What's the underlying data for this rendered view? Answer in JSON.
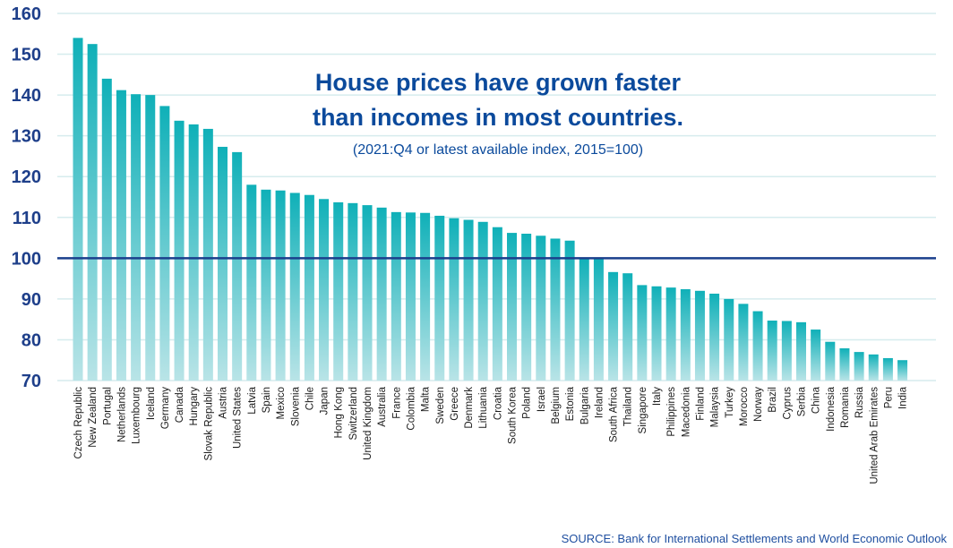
{
  "chart_data": {
    "type": "bar",
    "title_line1": "House prices have grown faster",
    "title_line2": "than incomes in most countries.",
    "subtitle": "(2021:Q4 or latest available index, 2015=100)",
    "source": "SOURCE: Bank for International Settlements and World Economic Outlook",
    "ylim": [
      70,
      160
    ],
    "yticks": [
      70,
      80,
      90,
      100,
      110,
      120,
      130,
      140,
      150,
      160
    ],
    "reference_line": 100,
    "grid": true,
    "categories": [
      "Czech Republic",
      "New Zealand",
      "Portugal",
      "Netherlands",
      "Luxembourg",
      "Iceland",
      "Germany",
      "Canada",
      "Hungary",
      "Slovak Republic",
      "Austria",
      "United States",
      "Latvia",
      "Spain",
      "Mexico",
      "Slovenia",
      "Chile",
      "Japan",
      "Hong Kong",
      "Switzerland",
      "United Kingdom",
      "Australia",
      "France",
      "Colombia",
      "Malta",
      "Sweden",
      "Greece",
      "Denmark",
      "Lithuania",
      "Croatia",
      "South Korea",
      "Poland",
      "Israel",
      "Belgium",
      "Estonia",
      "Bulgaria",
      "Ireland",
      "South Africa",
      "Thailand",
      "Singapore",
      "Italy",
      "Philippines",
      "Macedonia",
      "Finland",
      "Malaysia",
      "Turkey",
      "Morocco",
      "Norway",
      "Brazil",
      "Cyprus",
      "Serbia",
      "China",
      "Indonesia",
      "Romania",
      "Russia",
      "United Arab Emirates",
      "Peru",
      "India"
    ],
    "values": [
      154,
      152.5,
      144,
      141.2,
      140.2,
      140,
      137.3,
      133.7,
      132.8,
      131.7,
      127.3,
      126,
      118,
      116.8,
      116.6,
      116,
      115.5,
      114.5,
      113.7,
      113.5,
      113,
      112.4,
      111.3,
      111.2,
      111.1,
      110.4,
      109.8,
      109.4,
      108.9,
      107.6,
      106.2,
      106,
      105.5,
      104.8,
      104.3,
      100,
      100,
      96.6,
      96.3,
      93.4,
      93.1,
      92.8,
      92.4,
      92,
      91.3,
      90,
      88.8,
      87,
      84.7,
      84.6,
      84.3,
      82.5,
      79.5,
      77.9,
      77,
      76.4,
      75.5,
      75
    ]
  },
  "colors": {
    "bar_top": "#0fb0b8",
    "bar_bottom": "#b9e4e7",
    "reference_line": "#1a3f8c",
    "grid": "#d6ecee",
    "axis_text": "#1e3f8a",
    "title": "#0b4a9c"
  }
}
